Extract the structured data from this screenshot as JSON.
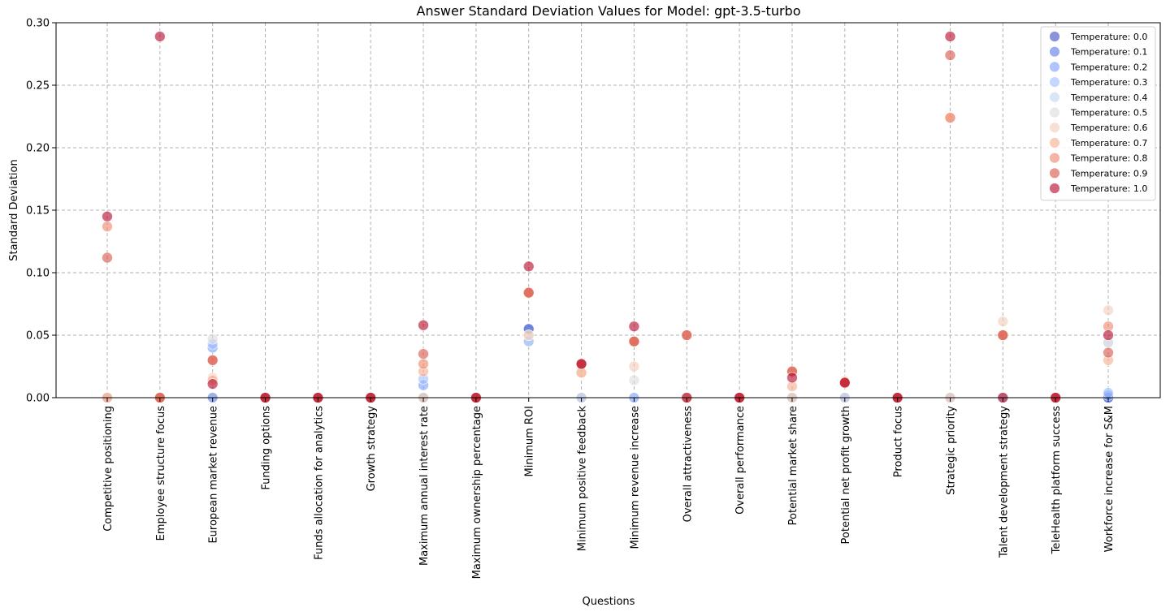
{
  "chart_data": {
    "type": "scatter",
    "title": "Answer Standard Deviation Values for Model: gpt-3.5-turbo",
    "xlabel": "Questions",
    "ylabel": "Standard Deviation",
    "ylim": [
      0,
      0.3
    ],
    "yticks": [
      "0.00",
      "0.05",
      "0.10",
      "0.15",
      "0.20",
      "0.25",
      "0.30"
    ],
    "grid": true,
    "legend_position": "top-right",
    "categories": [
      "Competitive positioning",
      "Employee structure focus",
      "European market revenue",
      "Funding options",
      "Funds allocation for analytics",
      "Growth strategy",
      "Maximum annual interest rate",
      "Maximum ownership percentage",
      "Minimum ROI",
      "Minimum positive feedback",
      "Minimum revenue increase",
      "Overall attractiveness",
      "Overall performance",
      "Potential market share",
      "Potential net profit growth",
      "Product focus",
      "Strategic priority",
      "Talent development strategy",
      "TeleHealth platform success",
      "Workforce increase for S&M"
    ],
    "series": [
      {
        "name": "Temperature: 0.0",
        "color": "#3b4cc0",
        "values": [
          0,
          0,
          0,
          0,
          0,
          0,
          0,
          0,
          0.055,
          0,
          0,
          0,
          0,
          0,
          0,
          0,
          0,
          0,
          0,
          0
        ]
      },
      {
        "name": "Temperature: 0.1",
        "color": "#5a78e4",
        "values": [
          0,
          0,
          0,
          0,
          0,
          0,
          0,
          0,
          0.055,
          0,
          0,
          0,
          0,
          0,
          0,
          0,
          0,
          0,
          0,
          0
        ]
      },
      {
        "name": "Temperature: 0.2",
        "color": "#7b9ff9",
        "values": [
          0,
          0,
          0.04,
          0,
          0,
          0,
          0.01,
          0,
          0.045,
          0,
          0,
          0,
          0,
          0,
          0,
          0,
          0,
          0,
          0,
          0.002
        ]
      },
      {
        "name": "Temperature: 0.3",
        "color": "#9ebeff",
        "values": [
          0,
          0,
          0.043,
          0,
          0,
          0,
          0.015,
          0,
          0.045,
          0,
          0,
          0,
          0,
          0,
          0,
          0,
          0,
          0,
          0,
          0.004
        ]
      },
      {
        "name": "Temperature: 0.4",
        "color": "#c0d4f5",
        "values": [
          0,
          0,
          0,
          0,
          0,
          0,
          0,
          0,
          0.045,
          0,
          0,
          0,
          0,
          0,
          0,
          0,
          0,
          0,
          0,
          0.044
        ]
      },
      {
        "name": "Temperature: 0.5",
        "color": "#dddcdc",
        "values": [
          0,
          0,
          0.047,
          0,
          0,
          0,
          0,
          0,
          0.05,
          0,
          0.014,
          0,
          0,
          0,
          0,
          0,
          0,
          0,
          0,
          0.044
        ]
      },
      {
        "name": "Temperature: 0.6",
        "color": "#f2cbb7",
        "values": [
          0,
          0,
          0.016,
          0,
          0,
          0,
          0,
          0,
          0.05,
          0.02,
          0.025,
          0,
          0,
          0,
          0.013,
          0,
          0,
          0.061,
          0,
          0.07
        ]
      },
      {
        "name": "Temperature: 0.7",
        "color": "#f7ac8e",
        "values": [
          0,
          0,
          0.014,
          0,
          0,
          0,
          0.021,
          0,
          0.084,
          0.02,
          0.045,
          0,
          0,
          0.009,
          0.013,
          0,
          0.224,
          0.05,
          0,
          0.03
        ]
      },
      {
        "name": "Temperature: 0.8",
        "color": "#ee8468",
        "values": [
          0.137,
          0,
          0.03,
          0,
          0,
          0,
          0.027,
          0,
          0.084,
          0.027,
          0.045,
          0.05,
          0,
          0.021,
          0.012,
          0,
          0.224,
          0.05,
          0,
          0.057
        ]
      },
      {
        "name": "Temperature: 0.9",
        "color": "#d65244",
        "values": [
          0.112,
          0,
          0.03,
          0,
          0,
          0,
          0.035,
          0,
          0.084,
          0.027,
          0.045,
          0.05,
          0,
          0.021,
          0.012,
          0,
          0.274,
          0.05,
          0,
          0.036
        ]
      },
      {
        "name": "Temperature: 1.0",
        "color": "#b40426",
        "values": [
          0.145,
          0.289,
          0.011,
          0,
          0,
          0,
          0.058,
          0,
          0.105,
          0.027,
          0.057,
          0,
          0,
          0.016,
          0.012,
          0,
          0.289,
          0,
          0,
          0.05
        ]
      }
    ]
  }
}
